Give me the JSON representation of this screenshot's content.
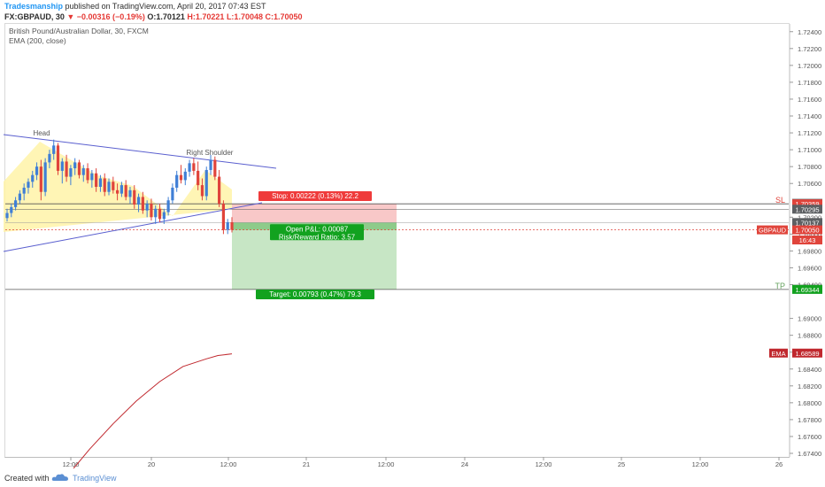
{
  "header": {
    "author": "Tradesmanship",
    "published": "published on TradingView.com, April 20, 2017 07:43 EST",
    "symbol": "FX:GBPAUD, 30",
    "change": "▼ −0.00316 (−0.19%)",
    "open": "O:1.70121",
    "high": "H:1.70221",
    "low": "L:1.70048",
    "close": "C:1.70050"
  },
  "legend": {
    "title": "British Pound/Australian Dollar, 30, FXCM",
    "indicator": "EMA (200, close)"
  },
  "footer": {
    "created_with": "Created with",
    "brand": "TradingView"
  },
  "colors": {
    "bull": "#3f7fd6",
    "bear": "#e0443b",
    "stop_zone": "#f6b5b5",
    "target_zone": "#b9e0b7",
    "triangle": "#fff3a8",
    "trendline": "#5a5fcf",
    "ema": "#c0282e",
    "stop_label": "#ef3b3b",
    "target_label": "#12a21f"
  },
  "chart_data": {
    "type": "candlestick",
    "ylim": [
      1.674,
      1.7245
    ],
    "x_tick_labels": [
      "12:00",
      "20",
      "12:00",
      "21",
      "12:00",
      "24",
      "12:00",
      "25",
      "12:00",
      "26"
    ],
    "y_tick_labels": [
      "1.72400",
      "1.72200",
      "1.72000",
      "1.71800",
      "1.71600",
      "1.71400",
      "1.71200",
      "1.71000",
      "1.70800",
      "1.70600",
      "1.70200",
      "1.70000",
      "1.69800",
      "1.69600",
      "1.69400",
      "1.69000",
      "1.68800",
      "1.68600",
      "1.68400",
      "1.68200",
      "1.68000",
      "1.67800",
      "1.67600",
      "1.67400"
    ],
    "price_tags": [
      {
        "text": "1.70365",
        "value": 1.70365,
        "color": "#5d6063"
      },
      {
        "text": "1.70359",
        "value": 1.70359,
        "color": "#e0443b"
      },
      {
        "text": "1.70295",
        "value": 1.70295,
        "color": "#5d6063"
      },
      {
        "text": "1.70137",
        "value": 1.70137,
        "color": "#5d6063"
      },
      {
        "text": "1.70050",
        "value": 1.7005,
        "color": "#e0443b"
      },
      {
        "text": "16:43",
        "value": 1.6993,
        "color": "#e0443b"
      },
      {
        "text": "1.69346",
        "value": 1.69346,
        "color": "#5d6063"
      },
      {
        "text": "1.69344",
        "value": 1.69344,
        "color": "#12a21f"
      },
      {
        "text": "1.68589",
        "value": 1.68589,
        "color": "#c0282e"
      }
    ],
    "tag_labels": {
      "symbol": "GBPAUD",
      "ema": "EMA"
    },
    "annotations": {
      "head": "Head",
      "right_shoulder": "Right Shoulder",
      "sl": "SL",
      "tp": "TP"
    },
    "position": {
      "entry": 1.70137,
      "stop": 1.70359,
      "target": 1.69344,
      "stop_label": "Stop: 0.00222 (0.13%) 22.2",
      "target_label": "Target: 0.00793 (0.47%) 79.3",
      "pl_label": "Open P&L: 0.00087",
      "rr_label": "Risk/Reward Ratio: 3.57"
    },
    "candles": [
      [
        1.7019,
        1.703,
        1.7015,
        1.7025
      ],
      [
        1.7025,
        1.7036,
        1.702,
        1.7032
      ],
      [
        1.7032,
        1.7044,
        1.7028,
        1.704
      ],
      [
        1.704,
        1.7052,
        1.7036,
        1.7048
      ],
      [
        1.7048,
        1.706,
        1.704,
        1.7055
      ],
      [
        1.7055,
        1.7066,
        1.7048,
        1.7062
      ],
      [
        1.7062,
        1.7075,
        1.7055,
        1.707
      ],
      [
        1.707,
        1.7085,
        1.7064,
        1.708
      ],
      [
        1.708,
        1.7088,
        1.704,
        1.705
      ],
      [
        1.705,
        1.709,
        1.7045,
        1.7085
      ],
      [
        1.7085,
        1.71,
        1.7078,
        1.7095
      ],
      [
        1.7095,
        1.7112,
        1.7088,
        1.7105
      ],
      [
        1.7105,
        1.7108,
        1.707,
        1.7075
      ],
      [
        1.7075,
        1.709,
        1.706,
        1.7086
      ],
      [
        1.7086,
        1.7094,
        1.7062,
        1.7068
      ],
      [
        1.7068,
        1.7082,
        1.7058,
        1.7078
      ],
      [
        1.7078,
        1.709,
        1.707,
        1.7085
      ],
      [
        1.7085,
        1.7088,
        1.7066,
        1.707
      ],
      [
        1.707,
        1.7082,
        1.7062,
        1.7078
      ],
      [
        1.7078,
        1.7084,
        1.706,
        1.7064
      ],
      [
        1.7064,
        1.7076,
        1.7055,
        1.7072
      ],
      [
        1.7072,
        1.7078,
        1.705,
        1.7056
      ],
      [
        1.7056,
        1.707,
        1.705,
        1.7066
      ],
      [
        1.7066,
        1.7072,
        1.7045,
        1.705
      ],
      [
        1.705,
        1.7066,
        1.7046,
        1.7062
      ],
      [
        1.7062,
        1.7068,
        1.7048,
        1.7052
      ],
      [
        1.7052,
        1.706,
        1.704,
        1.7048
      ],
      [
        1.7048,
        1.7062,
        1.7044,
        1.7058
      ],
      [
        1.7058,
        1.7064,
        1.704,
        1.7044
      ],
      [
        1.7044,
        1.7056,
        1.7036,
        1.7052
      ],
      [
        1.7052,
        1.7058,
        1.703,
        1.7035
      ],
      [
        1.7035,
        1.7048,
        1.7026,
        1.7044
      ],
      [
        1.7044,
        1.705,
        1.7024,
        1.7028
      ],
      [
        1.7028,
        1.704,
        1.702,
        1.7036
      ],
      [
        1.7036,
        1.7042,
        1.7016,
        1.702
      ],
      [
        1.702,
        1.7034,
        1.7012,
        1.703
      ],
      [
        1.703,
        1.7036,
        1.7014,
        1.7018
      ],
      [
        1.7018,
        1.703,
        1.7012,
        1.7026
      ],
      [
        1.7026,
        1.7044,
        1.7022,
        1.704
      ],
      [
        1.704,
        1.706,
        1.7036,
        1.7055
      ],
      [
        1.7055,
        1.7075,
        1.705,
        1.707
      ],
      [
        1.707,
        1.7082,
        1.706,
        1.7064
      ],
      [
        1.7064,
        1.7078,
        1.7058,
        1.7074
      ],
      [
        1.7074,
        1.7088,
        1.7068,
        1.7084
      ],
      [
        1.7084,
        1.709,
        1.707,
        1.7075
      ],
      [
        1.7075,
        1.7086,
        1.7052,
        1.7058
      ],
      [
        1.7058,
        1.7066,
        1.704,
        1.7045
      ],
      [
        1.7045,
        1.708,
        1.704,
        1.7076
      ],
      [
        1.7076,
        1.7094,
        1.707,
        1.7088
      ],
      [
        1.7088,
        1.7092,
        1.7064,
        1.7068
      ],
      [
        1.7068,
        1.7076,
        1.7032,
        1.7036
      ],
      [
        1.7036,
        1.704,
        1.7,
        1.7005
      ],
      [
        1.7005,
        1.7018,
        1.7,
        1.7014
      ],
      [
        1.7014,
        1.702,
        1.7002,
        1.7005
      ]
    ],
    "ema": [
      [
        0,
        1.6712
      ],
      [
        20,
        1.6745
      ],
      [
        40,
        1.6775
      ],
      [
        60,
        1.6802
      ],
      [
        80,
        1.6825
      ],
      [
        100,
        1.6843
      ],
      [
        120,
        1.6852
      ],
      [
        130,
        1.6856
      ],
      [
        142,
        1.6858
      ]
    ]
  }
}
